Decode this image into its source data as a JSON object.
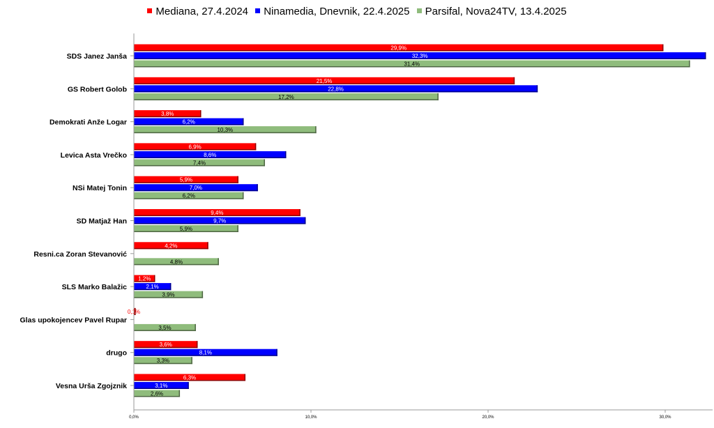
{
  "colors": {
    "Mediana": "#ff0000",
    "Ninamedia": "#0000ff",
    "Parsifal": "#8fbc7c"
  },
  "chart_data": {
    "type": "bar",
    "orientation": "horizontal",
    "legend_position": "top",
    "grid": false,
    "xlim": [
      0,
      33
    ],
    "xticks": [
      "0,0%",
      "10,0%",
      "20,0%",
      "30,0%"
    ],
    "xtick_values": [
      0,
      10,
      20,
      30
    ],
    "categories": [
      "SDS Janez Janša",
      "GS Robert Golob",
      "Demokrati Anže Logar",
      "Levica  Asta Vrečko",
      "NSi Matej Tonin",
      "SD Matjaž Han",
      "Resni.ca Zoran Stevanović",
      "SLS Marko Balažic",
      "Glas upokojencev Pavel Rupar",
      "drugo",
      "Vesna Urša Zgojznik"
    ],
    "series": [
      {
        "name": "Mediana, 27.4.2024",
        "values": [
          29.9,
          21.5,
          3.8,
          6.9,
          5.9,
          9.4,
          4.2,
          1.2,
          0.1,
          3.6,
          6.3
        ],
        "labels": [
          "29,9%",
          "21,5%",
          "3,8%",
          "6,9%",
          "5,9%",
          "9,4%",
          "4,2%",
          "1,2%",
          "0,1%",
          "3,6%",
          "6,3%"
        ]
      },
      {
        "name": "Ninamedia, Dnevnik, 22.4.2025",
        "values": [
          32.3,
          22.8,
          6.2,
          8.6,
          7.0,
          9.7,
          null,
          2.1,
          null,
          8.1,
          3.1
        ],
        "labels": [
          "32,3%",
          "22,8%",
          "6,2%",
          "8,6%",
          "7,0%",
          "9,7%",
          null,
          "2,1%",
          null,
          "8,1%",
          "3,1%"
        ]
      },
      {
        "name": "Parsifal, Nova24TV, 13.4.2025",
        "values": [
          31.4,
          17.2,
          10.3,
          7.4,
          6.2,
          5.9,
          4.8,
          3.9,
          3.5,
          3.3,
          2.6
        ],
        "labels": [
          "31,4%",
          "17,2%",
          "10,3%",
          "7,4%",
          "6,2%",
          "5,9%",
          "4,8%",
          "3,9%",
          "3,5%",
          "3,3%",
          "2,6%"
        ]
      }
    ]
  }
}
